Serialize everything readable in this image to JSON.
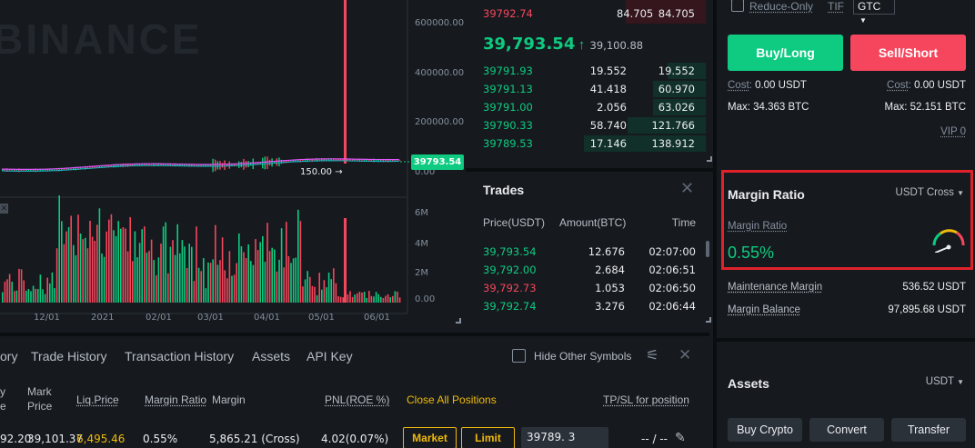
{
  "chart": {
    "watermark": "BINANCE",
    "price_axis": [
      "600000.00",
      "400000.00",
      "200000.00",
      "0.00"
    ],
    "volume_axis": [
      "6M",
      "4M",
      "2M",
      "0.00"
    ],
    "time_axis": [
      "12/01",
      "2021",
      "02/01",
      "03/01",
      "04/01",
      "05/01",
      "06/01"
    ],
    "current_price_badge": "39793.54",
    "low_marker": "150.00",
    "colors": {
      "up": "#0ecb81",
      "down": "#f6465d",
      "ma": "#e056fd"
    }
  },
  "orderbook": {
    "top_ask": {
      "price": "39792.74",
      "amount": "84.705",
      "total": "84.705"
    },
    "last_price": "39,793.54",
    "last_arrow": "↑",
    "mark_price": "39,100.88",
    "bids": [
      {
        "price": "39791.93",
        "amount": "19.552",
        "total": "19.552"
      },
      {
        "price": "39791.13",
        "amount": "41.418",
        "total": "60.970"
      },
      {
        "price": "39791.00",
        "amount": "2.056",
        "total": "63.026"
      },
      {
        "price": "39790.33",
        "amount": "58.740",
        "total": "121.766"
      },
      {
        "price": "39789.53",
        "amount": "17.146",
        "total": "138.912"
      }
    ]
  },
  "trades": {
    "title": "Trades",
    "headers": {
      "price": "Price(USDT)",
      "amount": "Amount(BTC)",
      "time": "Time"
    },
    "rows": [
      {
        "price": "39,793.54",
        "amount": "12.676",
        "time": "02:07:00",
        "side": "buy"
      },
      {
        "price": "39,792.00",
        "amount": "2.684",
        "time": "02:06:51",
        "side": "buy"
      },
      {
        "price": "39,792.73",
        "amount": "1.053",
        "time": "02:06:50",
        "side": "sell"
      },
      {
        "price": "39,792.74",
        "amount": "3.276",
        "time": "02:06:44",
        "side": "buy"
      }
    ]
  },
  "order_form": {
    "reduce_only": "Reduce-Only",
    "tif_label": "TIF",
    "tif_value": "GTC",
    "buy_label": "Buy/Long",
    "sell_label": "Sell/Short",
    "cost_label": "Cost",
    "buy_cost": "0.00 USDT",
    "sell_cost": "0.00 USDT",
    "buy_max": "Max: 34.363 BTC",
    "sell_max": "Max: 52.151 BTC",
    "vip": "VIP 0"
  },
  "margin": {
    "title": "Margin Ratio",
    "mode": "USDT Cross",
    "ratio_label": "Margin Ratio",
    "ratio_value": "0.55%",
    "maintenance_label": "Maintenance Margin",
    "maintenance_value": "536.52 USDT",
    "balance_label": "Margin Balance",
    "balance_value": "97,895.68 USDT",
    "gauge_level": 0.0055,
    "highlight_color": "#e0222b"
  },
  "assets": {
    "title": "Assets",
    "currency": "USDT",
    "buy_crypto": "Buy Crypto",
    "convert": "Convert",
    "transfer": "Transfer"
  },
  "positions": {
    "tabs": [
      "ory",
      "Trade History",
      "Transaction History",
      "Assets",
      "API Key"
    ],
    "hide_other": "Hide Other Symbols",
    "headers": {
      "entry_a": "y",
      "entry_b": "e",
      "mark_a": "Mark",
      "mark_b": "Price",
      "liq": "Liq.Price",
      "margin_ratio": "Margin Ratio",
      "margin": "Margin",
      "pnl": "PNL(ROE %)",
      "close_all": "Close All Positions",
      "tpsl": "TP/SL for position"
    },
    "row": {
      "entry": "92.20",
      "mark": "39,101.37",
      "liq": "6,495.46",
      "margin_ratio": "0.55%",
      "margin": "5,865.21 (Cross)",
      "pnl": "4.02(0.07%)",
      "market_btn": "Market",
      "limit_btn": "Limit",
      "price_input": "39789. 3",
      "tpsl": "-- / --"
    }
  }
}
